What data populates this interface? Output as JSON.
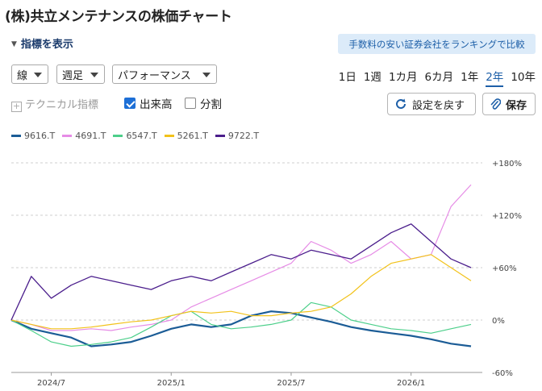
{
  "header": {
    "title": "(株)共立メンテナンスの株価チャート"
  },
  "controls": {
    "indicator_toggle": "指標を表示",
    "promo_text": "手数料の安い証券会社をランキングで比較",
    "line_type": "線",
    "interval": "週足",
    "mode": "パフォーマンス",
    "periods": [
      "1日",
      "1週",
      "1カ月",
      "6カ月",
      "1年",
      "2年",
      "10年"
    ],
    "active_period": "2年",
    "technical": "テクニカル指標",
    "volume": "出来高",
    "split": "分割",
    "reset_button": "設定を戻す",
    "save_button": "保存"
  },
  "colors": {
    "accent": "#1d5fa8",
    "promo_bg": "#dcebf9",
    "checkbox": "#1d6fd6"
  },
  "icons": {
    "reset": "refresh-icon",
    "save": "paperclip-icon"
  },
  "chart_data": {
    "type": "line",
    "x_ticks": [
      "2024/7",
      "2025/1",
      "2025/7",
      "2026/1"
    ],
    "y_ticks": [
      "+180%",
      "+120%",
      "+60%",
      "0%",
      "-60%"
    ],
    "ylim": [
      -60,
      180
    ],
    "y_unit": "%",
    "grid": true,
    "legend_position": "top-left",
    "x": [
      "2024-05",
      "2024-06",
      "2024-07",
      "2024-08",
      "2024-09",
      "2024-10",
      "2024-11",
      "2024-12",
      "2025-01",
      "2025-02",
      "2025-03",
      "2025-04",
      "2025-05",
      "2025-06",
      "2025-07",
      "2025-08",
      "2025-09",
      "2025-10",
      "2025-11",
      "2025-12",
      "2026-01",
      "2026-02",
      "2026-03",
      "2026-04"
    ],
    "series": [
      {
        "name": "9616.T",
        "color": "#1b5c96",
        "width": 2.2,
        "values": [
          0,
          -10,
          -15,
          -20,
          -30,
          -28,
          -25,
          -18,
          -10,
          -5,
          -8,
          -5,
          5,
          10,
          8,
          3,
          -2,
          -8,
          -12,
          -15,
          -18,
          -22,
          -27,
          -30
        ]
      },
      {
        "name": "4691.T",
        "color": "#e68ce6",
        "width": 1.2,
        "values": [
          0,
          -5,
          -12,
          -12,
          -10,
          -12,
          -8,
          -5,
          0,
          15,
          25,
          35,
          45,
          55,
          65,
          90,
          80,
          65,
          75,
          90,
          70,
          75,
          130,
          155
        ]
      },
      {
        "name": "6547.T",
        "color": "#4ccf8a",
        "width": 1.2,
        "values": [
          0,
          -12,
          -25,
          -30,
          -28,
          -25,
          -20,
          -8,
          5,
          10,
          -5,
          -10,
          -8,
          -5,
          0,
          20,
          15,
          0,
          -5,
          -10,
          -12,
          -15,
          -10,
          -5
        ]
      },
      {
        "name": "5261.T",
        "color": "#f2c21a",
        "width": 1.2,
        "values": [
          0,
          -5,
          -10,
          -10,
          -8,
          -5,
          -2,
          0,
          5,
          10,
          8,
          10,
          5,
          5,
          8,
          10,
          15,
          30,
          50,
          65,
          70,
          75,
          60,
          45
        ]
      },
      {
        "name": "9722.T",
        "color": "#4b1e8c",
        "width": 1.3,
        "values": [
          0,
          50,
          25,
          40,
          50,
          45,
          40,
          35,
          45,
          50,
          45,
          55,
          65,
          75,
          70,
          80,
          75,
          70,
          85,
          100,
          110,
          90,
          70,
          60
        ]
      }
    ]
  }
}
